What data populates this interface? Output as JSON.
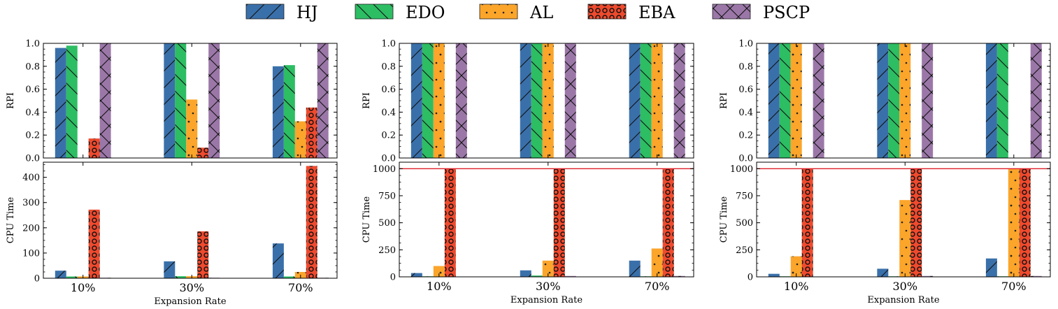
{
  "legend": [
    {
      "name": "HJ",
      "color": "#3a70aa",
      "pattern": "diag-forward"
    },
    {
      "name": "EDO",
      "color": "#2dbd63",
      "pattern": "diag-back"
    },
    {
      "name": "AL",
      "color": "#fba52b",
      "pattern": "dots"
    },
    {
      "name": "EBA",
      "color": "#ef4a2e",
      "pattern": "circles"
    },
    {
      "name": "PSCP",
      "color": "#9b77a8",
      "pattern": "cross"
    }
  ],
  "chart_data": [
    {
      "type": "bar",
      "panel": "top-left",
      "categories": [
        "10%",
        "30%",
        "70%"
      ],
      "xlabel": "",
      "ylabel": "RPI",
      "ylim": [
        0,
        1.0
      ],
      "yticks": [
        "0.0",
        "0.2",
        "0.4",
        "0.6",
        "0.8",
        "1.0"
      ],
      "series": [
        {
          "name": "HJ",
          "values": [
            0.96,
            1.0,
            0.8
          ]
        },
        {
          "name": "EDO",
          "values": [
            0.98,
            1.0,
            0.81
          ]
        },
        {
          "name": "AL",
          "values": [
            0,
            0.51,
            0.32
          ]
        },
        {
          "name": "EBA",
          "values": [
            0.17,
            0.09,
            0.44
          ]
        },
        {
          "name": "PSCP",
          "values": [
            1.0,
            1.0,
            1.0
          ]
        }
      ]
    },
    {
      "type": "bar",
      "panel": "top-middle",
      "categories": [
        "10%",
        "30%",
        "70%"
      ],
      "xlabel": "",
      "ylabel": "RPI",
      "ylim": [
        0,
        1.0
      ],
      "yticks": [
        "0.0",
        "0.2",
        "0.4",
        "0.6",
        "0.8",
        "1.0"
      ],
      "series": [
        {
          "name": "HJ",
          "values": [
            1.0,
            1.0,
            1.0
          ]
        },
        {
          "name": "EDO",
          "values": [
            1.0,
            1.0,
            1.0
          ]
        },
        {
          "name": "AL",
          "values": [
            1.0,
            1.0,
            1.0
          ]
        },
        {
          "name": "EBA",
          "values": [
            0,
            0,
            0
          ]
        },
        {
          "name": "PSCP",
          "values": [
            1.0,
            1.0,
            1.0
          ]
        }
      ]
    },
    {
      "type": "bar",
      "panel": "top-right",
      "categories": [
        "10%",
        "30%",
        "70%"
      ],
      "xlabel": "",
      "ylabel": "RPI",
      "ylim": [
        0,
        1.0
      ],
      "yticks": [
        "0.0",
        "0.2",
        "0.4",
        "0.6",
        "0.8",
        "1.0"
      ],
      "series": [
        {
          "name": "HJ",
          "values": [
            1.0,
            1.0,
            1.0
          ]
        },
        {
          "name": "EDO",
          "values": [
            1.0,
            1.0,
            1.0
          ]
        },
        {
          "name": "AL",
          "values": [
            1.0,
            1.0,
            0
          ]
        },
        {
          "name": "EBA",
          "values": [
            0,
            0,
            0
          ]
        },
        {
          "name": "PSCP",
          "values": [
            1.0,
            1.0,
            1.0
          ]
        }
      ]
    },
    {
      "type": "bar",
      "panel": "bottom-left",
      "categories": [
        "10%",
        "30%",
        "70%"
      ],
      "xlabel": "Expansion Rate",
      "ylabel": "CPU Time",
      "ylim": [
        0,
        460
      ],
      "yticks": [
        "0",
        "100",
        "200",
        "300",
        "400"
      ],
      "series": [
        {
          "name": "HJ",
          "values": [
            30,
            67,
            138
          ]
        },
        {
          "name": "EDO",
          "values": [
            7,
            8,
            7
          ]
        },
        {
          "name": "AL",
          "values": [
            7,
            8,
            25
          ]
        },
        {
          "name": "EBA",
          "values": [
            272,
            186,
            445
          ]
        },
        {
          "name": "PSCP",
          "values": [
            2,
            2,
            2
          ]
        }
      ]
    },
    {
      "type": "bar",
      "panel": "bottom-middle",
      "categories": [
        "10%",
        "30%",
        "70%"
      ],
      "xlabel": "Expansion Rate",
      "ylabel": "CPU Time",
      "ylim": [
        0,
        1060
      ],
      "yticks": [
        "0",
        "250",
        "500",
        "750",
        "1000"
      ],
      "reference_line": 1000,
      "series": [
        {
          "name": "HJ",
          "values": [
            35,
            60,
            150
          ]
        },
        {
          "name": "EDO",
          "values": [
            5,
            12,
            5
          ]
        },
        {
          "name": "AL",
          "values": [
            100,
            150,
            262
          ]
        },
        {
          "name": "EBA",
          "values": [
            1000,
            1000,
            1000
          ]
        },
        {
          "name": "PSCP",
          "values": [
            3,
            8,
            8
          ]
        }
      ]
    },
    {
      "type": "bar",
      "panel": "bottom-right",
      "categories": [
        "10%",
        "30%",
        "70%"
      ],
      "xlabel": "Expansion Rate",
      "ylabel": "CPU Time",
      "ylim": [
        0,
        1060
      ],
      "yticks": [
        "0",
        "250",
        "500",
        "750",
        "1000"
      ],
      "reference_line": 1000,
      "series": [
        {
          "name": "HJ",
          "values": [
            28,
            75,
            170
          ]
        },
        {
          "name": "EDO",
          "values": [
            5,
            5,
            5
          ]
        },
        {
          "name": "AL",
          "values": [
            190,
            710,
            1000
          ]
        },
        {
          "name": "EBA",
          "values": [
            1000,
            1000,
            1000
          ]
        },
        {
          "name": "PSCP",
          "values": [
            3,
            8,
            8
          ]
        }
      ]
    }
  ]
}
